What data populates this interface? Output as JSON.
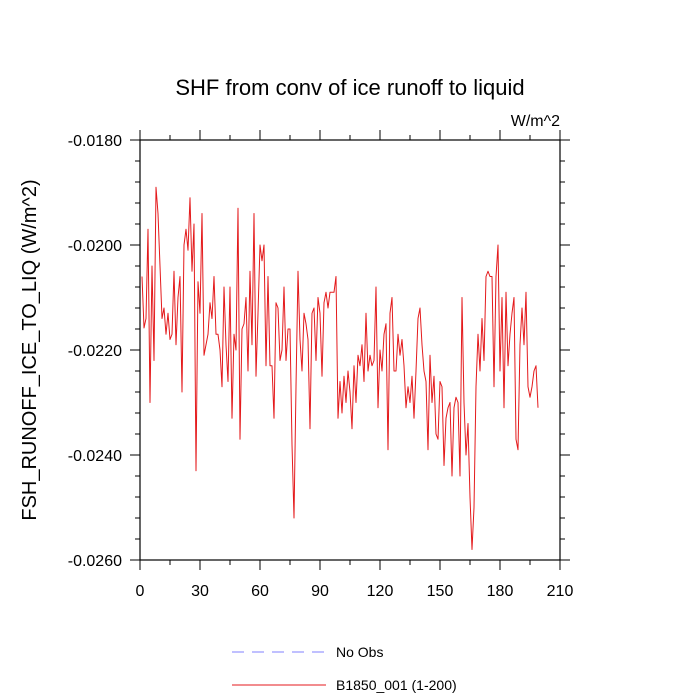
{
  "chart_data": {
    "type": "line",
    "title": "SHF from conv of ice runoff to liquid",
    "units_label": "W/m^2",
    "xlabel": "",
    "ylabel": "FSH_RUNOFF_ICE_TO_LIQ  (W/m^2)",
    "xlim": [
      0,
      210
    ],
    "ylim": [
      -0.026,
      -0.018
    ],
    "x_ticks": [
      0,
      30,
      60,
      90,
      120,
      150,
      180,
      210
    ],
    "x_tick_labels": [
      "0",
      "30",
      "60",
      "90",
      "120",
      "150",
      "180",
      "210"
    ],
    "y_ticks": [
      -0.026,
      -0.024,
      -0.022,
      -0.02,
      -0.018
    ],
    "y_tick_labels": [
      "-0.0260",
      "-0.0240",
      "-0.0220",
      "-0.0200",
      "-0.0180"
    ],
    "grid": false,
    "legend": [
      {
        "label": "No Obs",
        "color": "#8080ff",
        "style": "dashed"
      },
      {
        "label": "B1850_001 (1-200)",
        "color": "#e41a1c",
        "style": "solid"
      }
    ],
    "series": [
      {
        "name": "B1850_001 (1-200)",
        "color": "#e41a1c",
        "x_start": 1,
        "x_step": 1,
        "values": [
          -0.0206,
          -0.02158,
          -0.0214,
          -0.0197,
          -0.023,
          -0.0204,
          -0.0222,
          -0.0189,
          -0.0194,
          -0.0204,
          -0.0214,
          -0.0212,
          -0.0217,
          -0.0213,
          -0.0218,
          -0.0217,
          -0.0205,
          -0.0219,
          -0.021,
          -0.0206,
          -0.0228,
          -0.02,
          -0.0197,
          -0.0201,
          -0.0191,
          -0.0205,
          -0.0196,
          -0.0243,
          -0.0207,
          -0.0213,
          -0.0194,
          -0.0221,
          -0.0219,
          -0.0217,
          -0.0211,
          -0.0214,
          -0.0206,
          -0.0217,
          -0.0217,
          -0.022,
          -0.0227,
          -0.0208,
          -0.0219,
          -0.0226,
          -0.0208,
          -0.0233,
          -0.0217,
          -0.022,
          -0.0193,
          -0.0237,
          -0.0216,
          -0.0215,
          -0.021,
          -0.0224,
          -0.0205,
          -0.0219,
          -0.0194,
          -0.0225,
          -0.0213,
          -0.02,
          -0.0203,
          -0.02,
          -0.0223,
          -0.0206,
          -0.0223,
          -0.0223,
          -0.0233,
          -0.0211,
          -0.0212,
          -0.0222,
          -0.022,
          -0.0208,
          -0.0222,
          -0.0216,
          -0.0216,
          -0.0238,
          -0.0252,
          -0.0227,
          -0.0205,
          -0.0218,
          -0.0224,
          -0.0213,
          -0.0215,
          -0.0218,
          -0.0235,
          -0.0213,
          -0.0212,
          -0.0222,
          -0.021,
          -0.0213,
          -0.0225,
          -0.0211,
          -0.0209,
          -0.0212,
          -0.0209,
          -0.0209,
          -0.0209,
          -0.0206,
          -0.0233,
          -0.0226,
          -0.0232,
          -0.0225,
          -0.023,
          -0.0224,
          -0.0228,
          -0.0235,
          -0.0223,
          -0.023,
          -0.0221,
          -0.0223,
          -0.0219,
          -0.0226,
          -0.0213,
          -0.0224,
          -0.0221,
          -0.0223,
          -0.0222,
          -0.0208,
          -0.0231,
          -0.022,
          -0.0224,
          -0.0217,
          -0.0215,
          -0.0239,
          -0.0213,
          -0.021,
          -0.0224,
          -0.0224,
          -0.0217,
          -0.0221,
          -0.0218,
          -0.0223,
          -0.0231,
          -0.0227,
          -0.023,
          -0.0225,
          -0.0233,
          -0.0224,
          -0.0214,
          -0.0212,
          -0.0219,
          -0.0224,
          -0.0226,
          -0.0239,
          -0.0221,
          -0.023,
          -0.0225,
          -0.0236,
          -0.0237,
          -0.0226,
          -0.0227,
          -0.0242,
          -0.0233,
          -0.0231,
          -0.023,
          -0.0244,
          -0.0231,
          -0.0229,
          -0.023,
          -0.0244,
          -0.021,
          -0.023,
          -0.024,
          -0.0234,
          -0.0248,
          -0.0258,
          -0.025,
          -0.0227,
          -0.0217,
          -0.0224,
          -0.0214,
          -0.0222,
          -0.0206,
          -0.0205,
          -0.0206,
          -0.0206,
          -0.0227,
          -0.0206,
          -0.02,
          -0.0224,
          -0.021,
          -0.0231,
          -0.0209,
          -0.0223,
          -0.0217,
          -0.0213,
          -0.021,
          -0.0237,
          -0.0239,
          -0.0219,
          -0.0212,
          -0.0219,
          -0.0209,
          -0.0227,
          -0.0229,
          -0.0227,
          -0.0224,
          -0.0223,
          -0.0231
        ]
      }
    ]
  }
}
